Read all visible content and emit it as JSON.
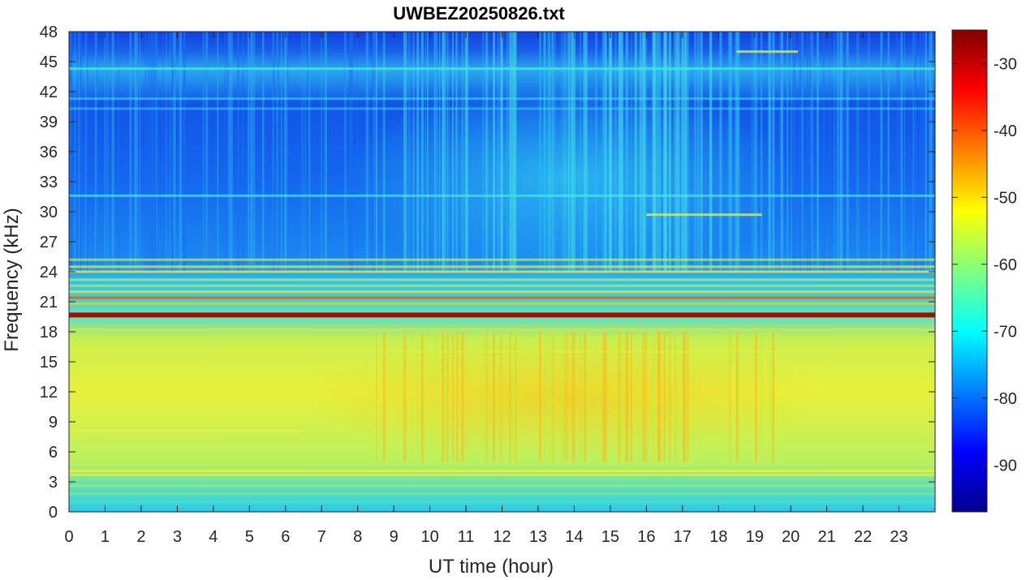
{
  "chart_data": {
    "type": "heatmap",
    "title": "UWBEZ20250826.txt",
    "xlabel": "UT time (hour)",
    "ylabel": "Frequency (kHz)",
    "xlim": [
      0,
      24
    ],
    "ylim": [
      0,
      48
    ],
    "x_ticks": [
      "0",
      "1",
      "2",
      "3",
      "4",
      "5",
      "6",
      "7",
      "8",
      "9",
      "10",
      "11",
      "12",
      "13",
      "14",
      "15",
      "16",
      "17",
      "18",
      "19",
      "20",
      "21",
      "22",
      "23"
    ],
    "y_ticks": [
      "0",
      "3",
      "6",
      "9",
      "12",
      "15",
      "18",
      "21",
      "24",
      "27",
      "30",
      "33",
      "36",
      "39",
      "42",
      "45",
      "48"
    ],
    "colormap": "jet",
    "colorbar": {
      "range": [
        -97,
        -25
      ],
      "ticks": [
        "-30",
        "-40",
        "-50",
        "-60",
        "-70",
        "-80",
        "-90"
      ]
    },
    "description_values": {
      "strong_line_khz": 19.8,
      "secondary_lines_khz": [
        21.4,
        24.0,
        4.0
      ],
      "background_high_freq_dbm": -82,
      "band_3_18_khz_dbm": -60,
      "peak_daytime_band_dbm": -53,
      "strong_line_dbm": -27
    }
  }
}
